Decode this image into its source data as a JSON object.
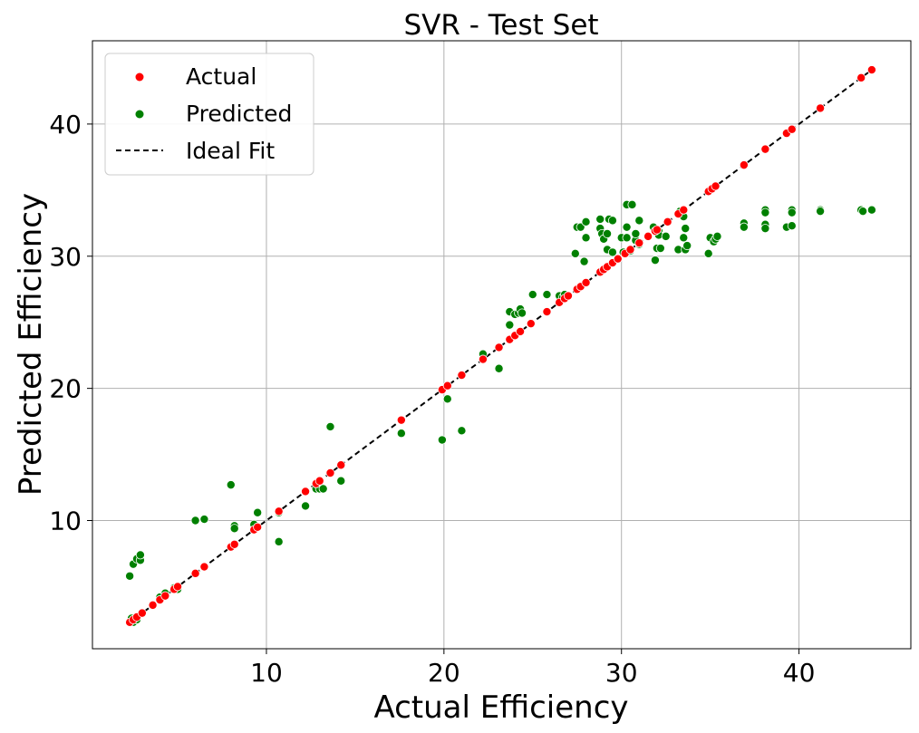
{
  "chart_data": {
    "type": "scatter",
    "title": "SVR - Test Set",
    "xlabel": "Actual Efficiency",
    "ylabel": "Predicted Efficiency",
    "xlim": [
      0.2,
      46.3
    ],
    "ylim": [
      0.3,
      46.3
    ],
    "x_ticks": [
      10,
      20,
      30,
      40
    ],
    "y_ticks": [
      10,
      20,
      30,
      40
    ],
    "grid": true,
    "legend_position": "top-left",
    "colors": {
      "actual": "#ff0000",
      "predicted": "#008000",
      "ideal": "#000000",
      "grid": "#b0b0b0"
    },
    "series": [
      {
        "name": "Actual",
        "color": "#ff0000",
        "points": [
          [
            2.3,
            2.3
          ],
          [
            2.5,
            2.5
          ],
          [
            2.7,
            2.7
          ],
          [
            3.0,
            3.0
          ],
          [
            3.6,
            3.6
          ],
          [
            4.0,
            4.0
          ],
          [
            4.3,
            4.3
          ],
          [
            4.8,
            4.8
          ],
          [
            5.0,
            5.0
          ],
          [
            6.0,
            6.0
          ],
          [
            6.5,
            6.5
          ],
          [
            8.0,
            8.0
          ],
          [
            8.2,
            8.2
          ],
          [
            9.3,
            9.3
          ],
          [
            9.5,
            9.5
          ],
          [
            10.7,
            10.7
          ],
          [
            12.2,
            12.2
          ],
          [
            12.8,
            12.8
          ],
          [
            13.0,
            13.0
          ],
          [
            13.6,
            13.6
          ],
          [
            14.2,
            14.2
          ],
          [
            17.6,
            17.6
          ],
          [
            19.9,
            19.9
          ],
          [
            20.2,
            20.2
          ],
          [
            21.0,
            21.0
          ],
          [
            22.2,
            22.2
          ],
          [
            23.1,
            23.1
          ],
          [
            23.7,
            23.7
          ],
          [
            24.0,
            24.0
          ],
          [
            24.3,
            24.3
          ],
          [
            24.9,
            24.9
          ],
          [
            25.8,
            25.8
          ],
          [
            26.5,
            26.5
          ],
          [
            26.8,
            26.8
          ],
          [
            27.0,
            27.0
          ],
          [
            27.5,
            27.5
          ],
          [
            27.7,
            27.7
          ],
          [
            28.0,
            28.0
          ],
          [
            28.8,
            28.8
          ],
          [
            29.0,
            29.0
          ],
          [
            29.2,
            29.2
          ],
          [
            29.5,
            29.5
          ],
          [
            29.8,
            29.8
          ],
          [
            30.2,
            30.2
          ],
          [
            30.5,
            30.5
          ],
          [
            31.0,
            31.0
          ],
          [
            31.5,
            31.5
          ],
          [
            31.9,
            31.9
          ],
          [
            32.0,
            32.0
          ],
          [
            32.6,
            32.6
          ],
          [
            33.2,
            33.2
          ],
          [
            33.5,
            33.5
          ],
          [
            34.9,
            34.9
          ],
          [
            35.1,
            35.1
          ],
          [
            35.3,
            35.3
          ],
          [
            36.9,
            36.9
          ],
          [
            38.1,
            38.1
          ],
          [
            39.3,
            39.3
          ],
          [
            39.6,
            39.6
          ],
          [
            41.2,
            41.2
          ],
          [
            43.5,
            43.5
          ],
          [
            44.1,
            44.1
          ]
        ]
      },
      {
        "name": "Predicted",
        "color": "#008000",
        "points": [
          [
            2.3,
            5.8
          ],
          [
            2.5,
            6.7
          ],
          [
            2.7,
            7.1
          ],
          [
            2.9,
            7.0
          ],
          [
            2.9,
            7.4
          ],
          [
            2.4,
            2.6
          ],
          [
            2.5,
            2.3
          ],
          [
            2.7,
            2.5
          ],
          [
            3.6,
            3.6
          ],
          [
            4.0,
            4.2
          ],
          [
            4.3,
            4.5
          ],
          [
            4.8,
            4.9
          ],
          [
            5.0,
            4.8
          ],
          [
            6.0,
            10.0
          ],
          [
            6.5,
            10.1
          ],
          [
            8.0,
            12.7
          ],
          [
            8.2,
            9.6
          ],
          [
            8.2,
            9.4
          ],
          [
            9.3,
            9.7
          ],
          [
            9.5,
            10.6
          ],
          [
            10.7,
            10.6
          ],
          [
            10.7,
            8.4
          ],
          [
            12.2,
            11.1
          ],
          [
            12.8,
            12.4
          ],
          [
            13.0,
            12.6
          ],
          [
            13.0,
            12.4
          ],
          [
            13.2,
            12.4
          ],
          [
            13.6,
            17.1
          ],
          [
            14.2,
            13.0
          ],
          [
            17.6,
            16.6
          ],
          [
            19.9,
            16.1
          ],
          [
            20.2,
            19.2
          ],
          [
            21.0,
            16.8
          ],
          [
            22.2,
            22.6
          ],
          [
            23.1,
            21.5
          ],
          [
            23.7,
            24.8
          ],
          [
            23.7,
            25.8
          ],
          [
            24.0,
            25.6
          ],
          [
            24.2,
            25.7
          ],
          [
            24.3,
            26.0
          ],
          [
            24.4,
            25.7
          ],
          [
            25.0,
            27.1
          ],
          [
            25.8,
            27.1
          ],
          [
            26.5,
            27.0
          ],
          [
            26.7,
            26.9
          ],
          [
            26.8,
            27.1
          ],
          [
            27.0,
            27.0
          ],
          [
            27.4,
            30.2
          ],
          [
            27.5,
            32.2
          ],
          [
            27.7,
            32.2
          ],
          [
            27.9,
            29.6
          ],
          [
            28.0,
            32.6
          ],
          [
            28.0,
            31.4
          ],
          [
            28.8,
            32.1
          ],
          [
            28.8,
            32.8
          ],
          [
            28.9,
            31.7
          ],
          [
            29.0,
            31.3
          ],
          [
            29.2,
            31.7
          ],
          [
            29.2,
            30.5
          ],
          [
            29.3,
            32.8
          ],
          [
            29.5,
            32.7
          ],
          [
            29.5,
            30.3
          ],
          [
            30.0,
            31.4
          ],
          [
            30.1,
            30.3
          ],
          [
            30.3,
            31.4
          ],
          [
            30.3,
            33.9
          ],
          [
            30.3,
            32.2
          ],
          [
            30.5,
            30.4
          ],
          [
            30.6,
            33.9
          ],
          [
            30.8,
            31.2
          ],
          [
            30.8,
            31.7
          ],
          [
            31.0,
            32.7
          ],
          [
            31.0,
            30.9
          ],
          [
            31.5,
            31.5
          ],
          [
            31.8,
            32.2
          ],
          [
            31.9,
            29.7
          ],
          [
            32.0,
            30.6
          ],
          [
            32.1,
            31.9
          ],
          [
            32.1,
            31.6
          ],
          [
            32.2,
            30.6
          ],
          [
            32.5,
            31.5
          ],
          [
            33.2,
            30.5
          ],
          [
            33.3,
            33.4
          ],
          [
            33.5,
            33.0
          ],
          [
            33.5,
            31.4
          ],
          [
            33.6,
            32.1
          ],
          [
            33.6,
            30.5
          ],
          [
            33.7,
            30.8
          ],
          [
            34.9,
            30.2
          ],
          [
            35.0,
            31.4
          ],
          [
            35.2,
            31.1
          ],
          [
            35.3,
            31.3
          ],
          [
            35.4,
            31.5
          ],
          [
            36.9,
            32.5
          ],
          [
            36.9,
            32.2
          ],
          [
            38.1,
            33.5
          ],
          [
            38.1,
            33.3
          ],
          [
            38.1,
            32.4
          ],
          [
            38.1,
            32.1
          ],
          [
            39.3,
            32.2
          ],
          [
            39.6,
            33.5
          ],
          [
            39.6,
            33.3
          ],
          [
            39.6,
            32.3
          ],
          [
            41.2,
            33.5
          ],
          [
            41.2,
            33.4
          ],
          [
            43.5,
            33.5
          ],
          [
            43.6,
            33.4
          ],
          [
            44.1,
            33.5
          ]
        ]
      },
      {
        "name": "Ideal Fit",
        "color": "#000000",
        "style": "dashed",
        "line": [
          [
            2.3,
            2.3
          ],
          [
            44.1,
            44.1
          ]
        ]
      }
    ]
  }
}
